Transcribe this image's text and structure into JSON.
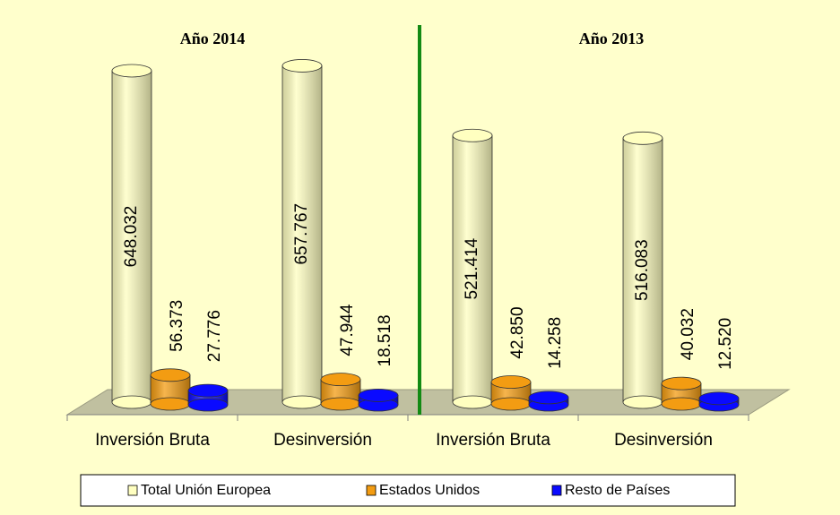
{
  "chart_data": {
    "type": "bar3d",
    "group_titles": [
      "Año 2014",
      "Año 2013"
    ],
    "categories": [
      "Inversión Bruta",
      "Desinversión",
      "Inversión Bruta",
      "Desinversión"
    ],
    "series": [
      {
        "name": "Total Unión Europea",
        "color": "#ffffc0",
        "values": [
          648032,
          657767,
          521414,
          516083
        ],
        "value_labels": [
          "648.032",
          "657.767",
          "521.414",
          "516.083"
        ]
      },
      {
        "name": "Estados Unidos",
        "color": "#f39c12",
        "values": [
          56373,
          47944,
          42850,
          40032
        ],
        "value_labels": [
          "56.373",
          "47.944",
          "42.850",
          "40.032"
        ]
      },
      {
        "name": "Resto de Países",
        "color": "#0a0aff",
        "values": [
          27776,
          18518,
          14258,
          12520
        ],
        "value_labels": [
          "27.776",
          "18.518",
          "14.258",
          "12.520"
        ]
      }
    ],
    "legend": "bottom"
  }
}
